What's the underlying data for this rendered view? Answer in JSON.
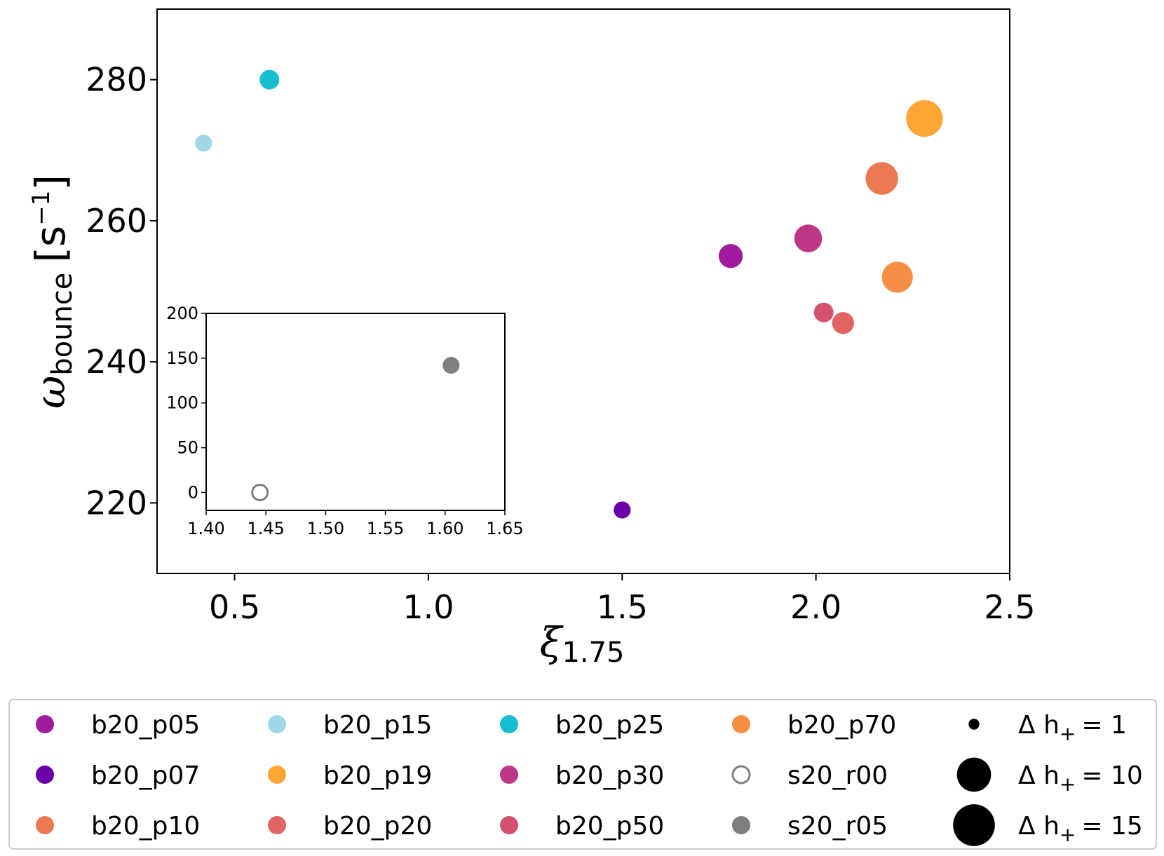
{
  "chart_data": {
    "type": "scatter",
    "main": {
      "xlabel_symbol": "ξ",
      "xlabel_sub": "1.75",
      "ylabel_symbol": "ω",
      "ylabel_sub": "bounce",
      "ylabel_unit": "[s",
      "ylabel_unit_exp": "−1",
      "ylabel_unit_close": "]",
      "xlim": [
        0.3,
        2.5
      ],
      "ylim": [
        210,
        290
      ],
      "xticks": [
        0.5,
        1.0,
        1.5,
        2.0,
        2.5
      ],
      "xtick_labels": [
        "0.5",
        "1.0",
        "1.5",
        "2.0",
        "2.5"
      ],
      "yticks": [
        220,
        240,
        260,
        280
      ],
      "ytick_labels": [
        "220",
        "240",
        "260",
        "280"
      ]
    },
    "inset": {
      "xlim": [
        1.4,
        1.65
      ],
      "ylim": [
        -20,
        200
      ],
      "xticks": [
        1.4,
        1.45,
        1.5,
        1.55,
        1.6,
        1.65
      ],
      "xtick_labels": [
        "1.40",
        "1.45",
        "1.50",
        "1.55",
        "1.60",
        "1.65"
      ],
      "yticks": [
        0,
        50,
        100,
        150,
        200
      ],
      "ytick_labels": [
        "0",
        "50",
        "100",
        "150",
        "200"
      ]
    },
    "series": [
      {
        "name": "b20_p05",
        "color": "#a01c9c",
        "x": 1.78,
        "y": 255.0,
        "dh": 6,
        "panel": "main",
        "filled": true
      },
      {
        "name": "b20_p07",
        "color": "#6a00a8",
        "x": 1.5,
        "y": 219.0,
        "dh": 3,
        "panel": "main",
        "filled": true
      },
      {
        "name": "b20_p10",
        "color": "#ed7953",
        "x": 2.17,
        "y": 266.0,
        "dh": 11,
        "panel": "main",
        "filled": true
      },
      {
        "name": "b20_p15",
        "color": "#9fd8e6",
        "x": 0.42,
        "y": 271.0,
        "dh": 3,
        "panel": "main",
        "filled": true
      },
      {
        "name": "b20_p19",
        "color": "#fca636",
        "x": 2.28,
        "y": 274.5,
        "dh": 14,
        "panel": "main",
        "filled": true
      },
      {
        "name": "b20_p20",
        "color": "#e16462",
        "x": 2.07,
        "y": 245.5,
        "dh": 5,
        "panel": "main",
        "filled": true
      },
      {
        "name": "b20_p25",
        "color": "#17becf",
        "x": 0.59,
        "y": 280.0,
        "dh": 4,
        "panel": "main",
        "filled": true
      },
      {
        "name": "b20_p30",
        "color": "#bd3786",
        "x": 1.98,
        "y": 257.5,
        "dh": 8,
        "panel": "main",
        "filled": true
      },
      {
        "name": "b20_p50",
        "color": "#d3506f",
        "x": 2.02,
        "y": 247.0,
        "dh": 4,
        "panel": "main",
        "filled": true
      },
      {
        "name": "b20_p70",
        "color": "#f68f44",
        "x": 2.21,
        "y": 252.0,
        "dh": 10,
        "panel": "main",
        "filled": true
      },
      {
        "name": "s20_r00",
        "color": "#7f7f7f",
        "x": 1.445,
        "y": 0,
        "dh": 1,
        "panel": "inset",
        "filled": false
      },
      {
        "name": "s20_r05",
        "color": "#7f7f7f",
        "x": 1.605,
        "y": 142,
        "dh": 1,
        "panel": "inset",
        "filled": true
      }
    ],
    "legend": {
      "placement": "below",
      "columns": [
        [
          "b20_p05",
          "b20_p07",
          "b20_p10"
        ],
        [
          "b20_p15",
          "b20_p19",
          "b20_p20"
        ],
        [
          "b20_p25",
          "b20_p30",
          "b20_p50"
        ],
        [
          "b20_p70",
          "s20_r00",
          "s20_r05"
        ]
      ],
      "size_label_prefix": "Δ h",
      "size_label_sub": "+",
      "size_entries": [
        {
          "dh": 1,
          "text": "= 1"
        },
        {
          "dh": 10,
          "text": "= 10"
        },
        {
          "dh": 15,
          "text": "= 15"
        }
      ]
    }
  }
}
